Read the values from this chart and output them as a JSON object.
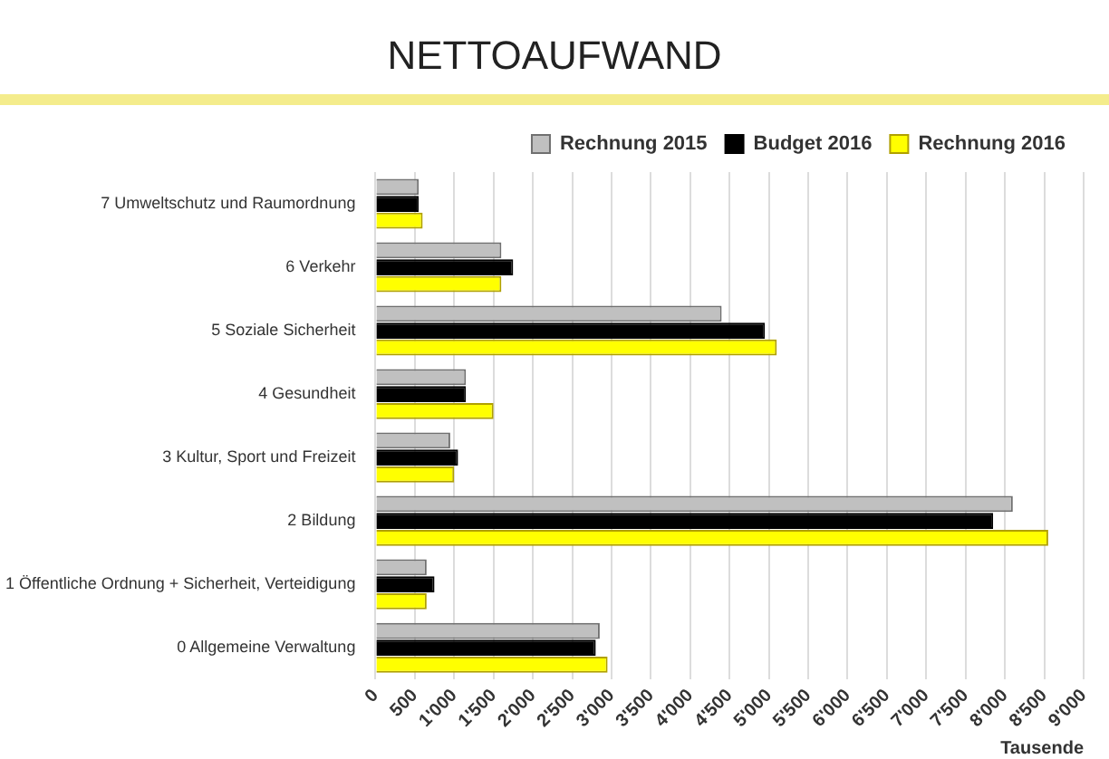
{
  "chart_data": {
    "type": "bar",
    "orientation": "horizontal",
    "title": "NETTOAUFWAND",
    "xlabel": "Tausende",
    "categories": [
      "7 Umweltschutz und Raumordnung",
      "6 Verkehr",
      "5 Soziale Sicherheit",
      "4 Gesundheit",
      "3 Kultur, Sport und Freizeit",
      "2 Bildung",
      "1 Öffentliche Ordnung + Sicherheit, Verteidigung",
      "0 Allgemeine Verwaltung"
    ],
    "series": [
      {
        "name": "Rechnung 2015",
        "color": "#c0c0c0",
        "values": [
          550,
          1600,
          4400,
          1150,
          950,
          8100,
          650,
          2850
        ]
      },
      {
        "name": "Budget 2016",
        "color": "#000000",
        "values": [
          550,
          1750,
          4950,
          1150,
          1050,
          7850,
          750,
          2800
        ]
      },
      {
        "name": "Rechnung 2016",
        "color": "#ffff00",
        "values": [
          600,
          1600,
          5100,
          1500,
          1000,
          8550,
          650,
          2950
        ]
      }
    ],
    "xlim": [
      0,
      9000
    ],
    "xticks": [
      0,
      500,
      {
        "value": 1000,
        "label": "1'000"
      },
      {
        "value": 1500,
        "label": "1'500"
      },
      {
        "value": 2000,
        "label": "2'000"
      },
      {
        "value": 2500,
        "label": "2'500"
      },
      {
        "value": 3000,
        "label": "3'000"
      },
      {
        "value": 3500,
        "label": "3'500"
      },
      {
        "value": 4000,
        "label": "4'000"
      },
      {
        "value": 4500,
        "label": "4'500"
      },
      {
        "value": 5000,
        "label": "5'000"
      },
      {
        "value": 5500,
        "label": "5'500"
      },
      {
        "value": 6000,
        "label": "6'000"
      },
      {
        "value": 6500,
        "label": "6'500"
      },
      {
        "value": 7000,
        "label": "7'000"
      },
      {
        "value": 7500,
        "label": "7'500"
      },
      {
        "value": 8000,
        "label": "8'000"
      },
      {
        "value": 8500,
        "label": "8'500"
      },
      {
        "value": 9000,
        "label": "9'000"
      }
    ],
    "grid": "x",
    "legend": "top right"
  }
}
